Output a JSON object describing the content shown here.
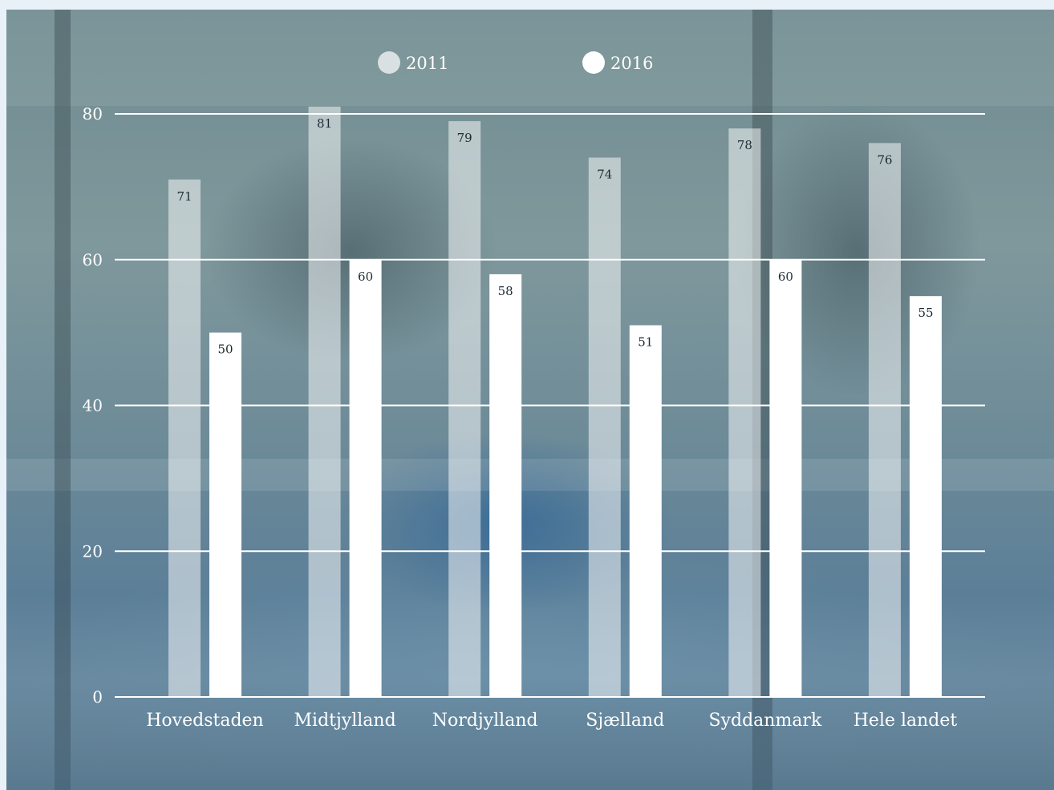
{
  "chart_data": {
    "type": "bar",
    "categories": [
      "Hovedstaden",
      "Midtjylland",
      "Nordjylland",
      "Sjælland",
      "Syddanmark",
      "Hele landet"
    ],
    "series": [
      {
        "name": "2011",
        "values": [
          71,
          81,
          79,
          74,
          78,
          76
        ],
        "color": "#ffffff",
        "opacity": 0.5
      },
      {
        "name": "2016",
        "values": [
          50,
          60,
          58,
          51,
          60,
          55
        ],
        "color": "#ffffff",
        "opacity": 1
      }
    ],
    "yticks": [
      "0",
      "20",
      "40",
      "60",
      "80"
    ],
    "ylim": [
      0,
      80
    ],
    "grid": true,
    "legend_position": "top-center",
    "title": "",
    "xlabel": "",
    "ylabel": ""
  }
}
